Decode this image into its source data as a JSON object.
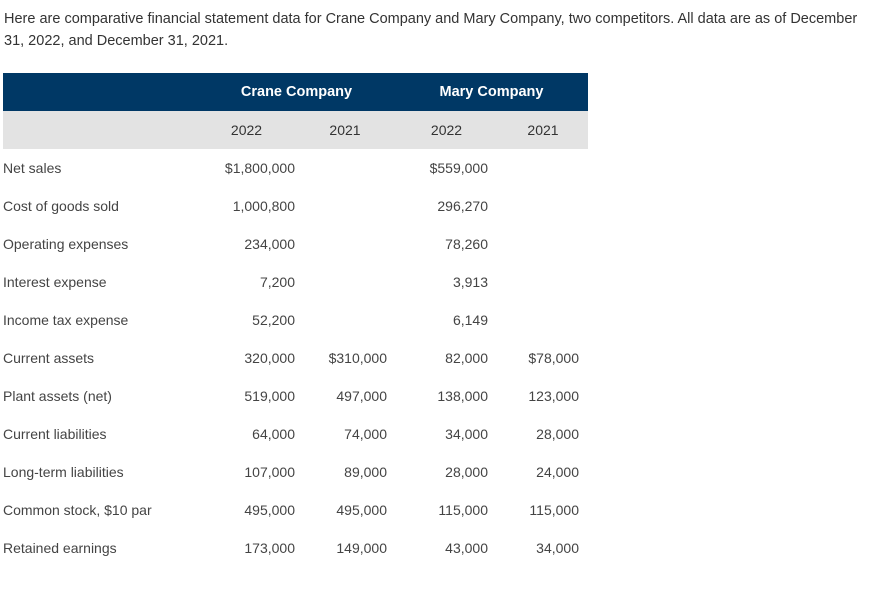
{
  "intro": "Here are comparative financial statement data for Crane Company and Mary Company, two competitors. All data are as of December 31, 2022, and December 31, 2021.",
  "table": {
    "companies": [
      "Crane Company",
      "Mary Company"
    ],
    "years": [
      "2022",
      "2021",
      "2022",
      "2021"
    ],
    "rows": [
      {
        "label": "Net sales",
        "values": [
          "$1,800,000",
          "",
          "$559,000",
          ""
        ]
      },
      {
        "label": "Cost of goods sold",
        "values": [
          "1,000,800",
          "",
          "296,270",
          ""
        ]
      },
      {
        "label": "Operating expenses",
        "values": [
          "234,000",
          "",
          "78,260",
          ""
        ]
      },
      {
        "label": "Interest expense",
        "values": [
          "7,200",
          "",
          "3,913",
          ""
        ]
      },
      {
        "label": "Income tax expense",
        "values": [
          "52,200",
          "",
          "6,149",
          ""
        ]
      },
      {
        "label": "Current assets",
        "values": [
          "320,000",
          "$310,000",
          "82,000",
          "$78,000"
        ]
      },
      {
        "label": "Plant assets (net)",
        "values": [
          "519,000",
          "497,000",
          "138,000",
          "123,000"
        ]
      },
      {
        "label": "Current liabilities",
        "values": [
          "64,000",
          "74,000",
          "34,000",
          "28,000"
        ]
      },
      {
        "label": "Long-term liabilities",
        "values": [
          "107,000",
          "89,000",
          "28,000",
          "24,000"
        ]
      },
      {
        "label": "Common stock, $10 par",
        "values": [
          "495,000",
          "495,000",
          "115,000",
          "115,000"
        ]
      },
      {
        "label": "Retained earnings",
        "values": [
          "173,000",
          "149,000",
          "43,000",
          "34,000"
        ]
      }
    ]
  }
}
